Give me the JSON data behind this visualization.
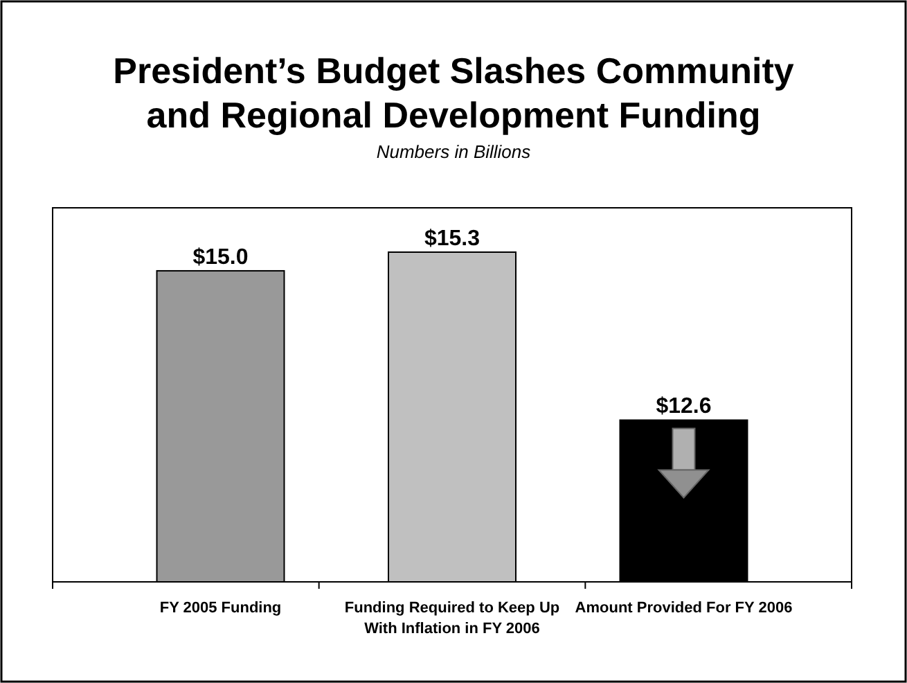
{
  "chart_data": {
    "type": "bar",
    "title": "President’s Budget Slashes Community and Regional Development Funding",
    "subtitle": "Numbers in Billions",
    "categories": [
      "FY 2005 Funding",
      "Funding Required to Keep Up With Inflation in FY 2006",
      "Amount Provided For FY 2006"
    ],
    "values": [
      15.0,
      15.3,
      12.6
    ],
    "colors": [
      "#999999",
      "#c0c0c0",
      "#000000"
    ],
    "value_labels": [
      "$15.0",
      "$15.3",
      "$12.6"
    ],
    "ylim": [
      10,
      15.3
    ]
  }
}
